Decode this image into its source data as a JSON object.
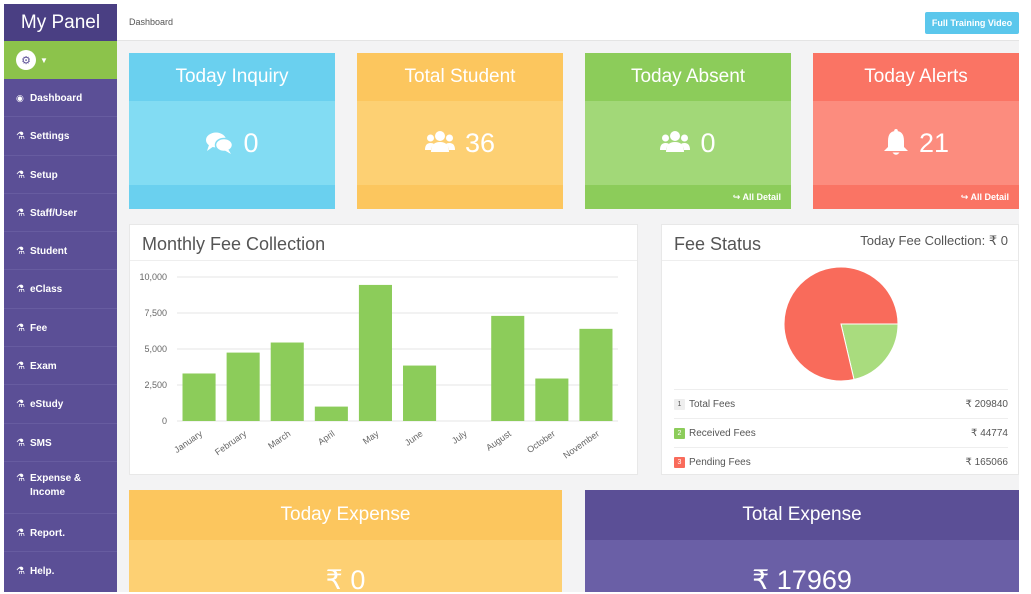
{
  "sidebar": {
    "brand": "My Panel",
    "user_icon": "user-avatar-icon",
    "items": [
      {
        "label": "Dashboard",
        "icon": "eye-icon"
      },
      {
        "label": "Settings",
        "icon": "flask-icon"
      },
      {
        "label": "Setup",
        "icon": "flask-icon"
      },
      {
        "label": "Staff/User",
        "icon": "flask-icon"
      },
      {
        "label": "Student",
        "icon": "flask-icon"
      },
      {
        "label": "eClass",
        "icon": "flask-icon"
      },
      {
        "label": "Fee",
        "icon": "flask-icon"
      },
      {
        "label": "Exam",
        "icon": "flask-icon"
      },
      {
        "label": "eStudy",
        "icon": "flask-icon"
      },
      {
        "label": "SMS",
        "icon": "flask-icon"
      },
      {
        "label": "Expense & Income",
        "icon": "flask-icon"
      },
      {
        "label": "Report.",
        "icon": "flask-icon"
      },
      {
        "label": "Help.",
        "icon": "flask-icon"
      }
    ]
  },
  "header": {
    "breadcrumb": "Dashboard",
    "training_button": "Full Training Video"
  },
  "stats": [
    {
      "title": "Today Inquiry",
      "value": "0",
      "icon": "comments-icon",
      "link": ""
    },
    {
      "title": "Total Student",
      "value": "36",
      "icon": "users-icon",
      "link": ""
    },
    {
      "title": "Today Absent",
      "value": "0",
      "icon": "users-icon",
      "link": "All Detail"
    },
    {
      "title": "Today Alerts",
      "value": "21",
      "icon": "bell-icon",
      "link": "All Detail"
    }
  ],
  "monthly_fee": {
    "title": "Monthly Fee Collection"
  },
  "chart_data": {
    "type": "bar",
    "categories": [
      "January",
      "February",
      "March",
      "April",
      "May",
      "June",
      "July",
      "August",
      "October",
      "November"
    ],
    "values": [
      3300,
      4750,
      5450,
      1000,
      9450,
      3850,
      0,
      7300,
      2950,
      6400
    ],
    "y_ticks": [
      "0",
      "2,500",
      "5,000",
      "7,500",
      "10,000"
    ],
    "ylim": [
      0,
      10000
    ],
    "color": "#8ccc5a",
    "grid": true
  },
  "fee_status": {
    "title": "Fee Status",
    "today_collection": "Today Fee Collection: ₹ 0",
    "pie": {
      "type": "pie",
      "slices": [
        {
          "label": "Received Fees",
          "value": 44774,
          "color": "#a9dc7e"
        },
        {
          "label": "Pending Fees",
          "value": 165066,
          "color": "#f96b5b"
        }
      ]
    },
    "rows": [
      {
        "num": "1",
        "label": "Total Fees",
        "amount": "₹ 209840",
        "color": "#eeeeee",
        "text_color": "#555555"
      },
      {
        "num": "2",
        "label": "Received Fees",
        "amount": "₹ 44774",
        "color": "#8ccc5a",
        "text_color": "#ffffff"
      },
      {
        "num": "3",
        "label": "Pending Fees",
        "amount": "₹ 165066",
        "color": "#f96b5b",
        "text_color": "#ffffff"
      }
    ]
  },
  "bottom": [
    {
      "title": "Today Expense",
      "value": "₹ 0"
    },
    {
      "title": "Total Expense",
      "value": "₹ 17969"
    }
  ]
}
